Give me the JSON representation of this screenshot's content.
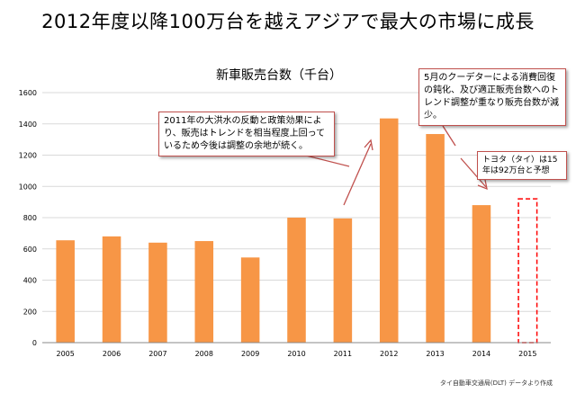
{
  "main_title": "2012年度以降100万台を越えアジアで最大の市場に成長",
  "callouts": {
    "flood": "2011年の大洪水の反動と政策効果により、販売はトレンドを相当程度上回っているため今後は調整の余地が続く。",
    "coup": "5月のクーデターによる消費回復の鈍化、及び適正販売台数へのトレンド調整が重なり販売台数が減少。",
    "toyota": "トヨタ（タイ）は15年は92万台と予想"
  },
  "source_note": "タイ自動車交通局(DLT) データより作成",
  "colors": {
    "bar": "#f79646",
    "callout_border": "#c0504d",
    "arrow": "#c0504d",
    "forecast_border": "#ff0000"
  },
  "chart_data": {
    "type": "bar",
    "title": "新車販売台数（千台）",
    "categories": [
      "2005",
      "2006",
      "2007",
      "2008",
      "2009",
      "2010",
      "2011",
      "2012",
      "2013",
      "2014",
      "2015"
    ],
    "values": [
      655,
      680,
      640,
      650,
      545,
      800,
      795,
      1435,
      1335,
      880,
      920
    ],
    "ylim": [
      0,
      1600
    ],
    "yticks": [
      0,
      200,
      400,
      600,
      800,
      1000,
      1200,
      1400,
      1600
    ],
    "grid": true,
    "forecast_category": "2015"
  }
}
